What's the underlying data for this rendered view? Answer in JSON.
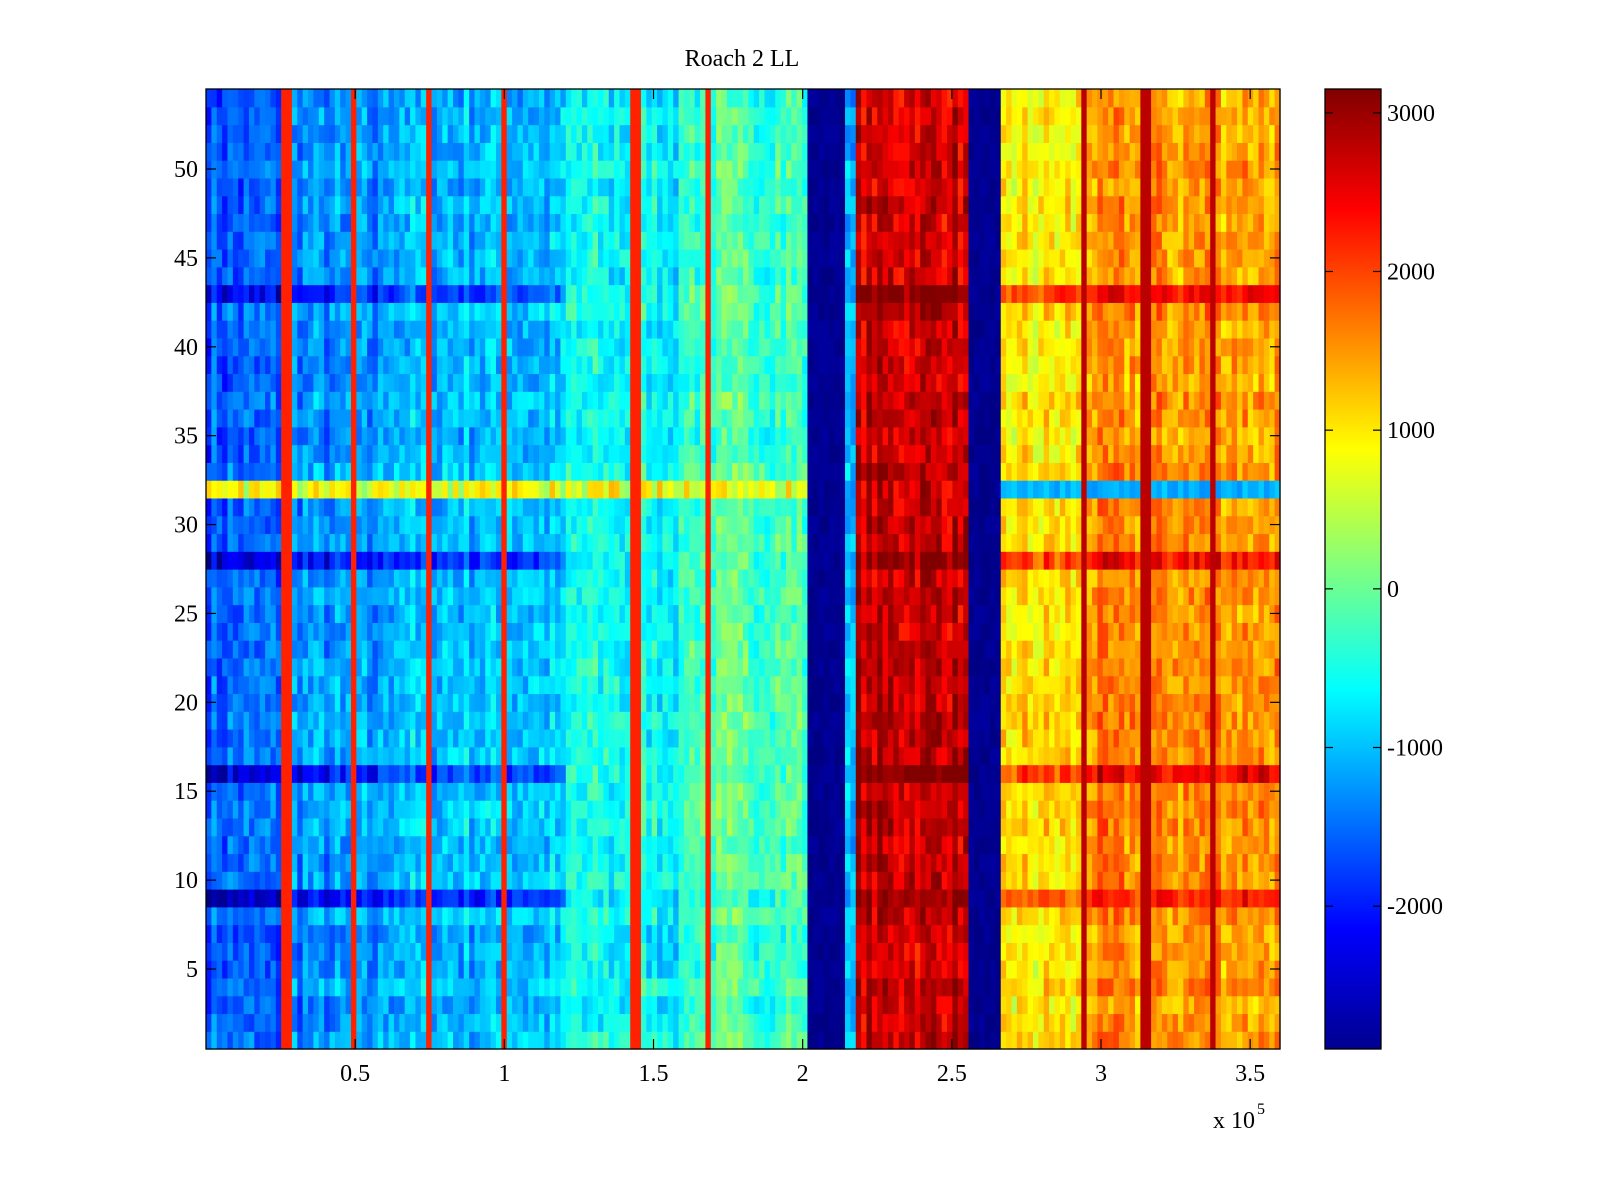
{
  "chart_data": {
    "type": "heatmap",
    "title": "Roach 2 LL",
    "xlabel": "",
    "ylabel": "",
    "x_multiplier_label": "x 10",
    "x_multiplier_exponent": "5",
    "xlim": [
      0,
      3.6
    ],
    "ylim": [
      0.5,
      54.5
    ],
    "x_ticks": [
      0.5,
      1,
      1.5,
      2,
      2.5,
      3,
      3.5
    ],
    "x_tick_labels": [
      "0.5",
      "1",
      "1.5",
      "2",
      "2.5",
      "3",
      "3.5"
    ],
    "y_ticks": [
      5,
      10,
      15,
      20,
      25,
      30,
      35,
      40,
      45,
      50
    ],
    "y_tick_labels": [
      "5",
      "10",
      "15",
      "20",
      "25",
      "30",
      "35",
      "40",
      "45",
      "50"
    ],
    "rows": 54,
    "colormap": "jet",
    "colorbar": {
      "min": -2900,
      "max": 3150,
      "ticks": [
        -2000,
        -1000,
        0,
        1000,
        2000,
        3000
      ],
      "tick_labels": [
        "-2000",
        "-1000",
        "0",
        "1000",
        "2000",
        "3000"
      ]
    },
    "column_profile": [
      {
        "x0": 0.0,
        "x1": 0.25,
        "value": -1600
      },
      {
        "x0": 0.25,
        "x1": 0.6,
        "value": -1300
      },
      {
        "x0": 0.6,
        "x1": 1.2,
        "value": -1000
      },
      {
        "x0": 1.2,
        "x1": 1.6,
        "value": -600
      },
      {
        "x0": 1.6,
        "x1": 2.02,
        "value": -200
      },
      {
        "x0": 2.02,
        "x1": 2.14,
        "value": -2900
      },
      {
        "x0": 2.14,
        "x1": 2.18,
        "value": -1200
      },
      {
        "x0": 2.18,
        "x1": 2.55,
        "value": 2700
      },
      {
        "x0": 2.55,
        "x1": 2.67,
        "value": -2900
      },
      {
        "x0": 2.67,
        "x1": 2.95,
        "value": 1000
      },
      {
        "x0": 2.95,
        "x1": 3.6,
        "value": 1500
      }
    ],
    "highlighted_rows": {
      "row_32_value": 1500,
      "strong_rows": [
        9,
        16,
        28,
        43
      ]
    },
    "vertical_streaks_x": [
      0.27,
      0.5,
      0.75,
      1.0,
      1.44,
      1.68,
      2.94,
      3.15,
      3.38
    ]
  }
}
